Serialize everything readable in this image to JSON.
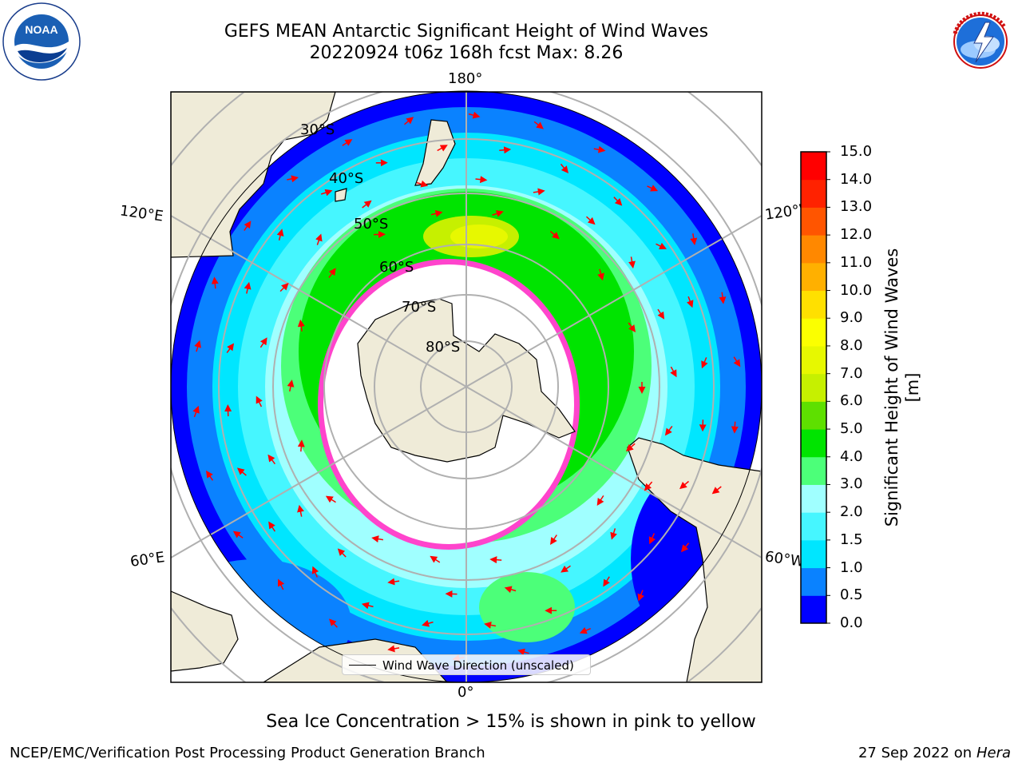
{
  "header": {
    "title_line1": "GEFS MEAN Antarctic Significant Height of Wind Waves",
    "title_line2": "20220924 t06z 168h fcst   Max: 8.26"
  },
  "logos": {
    "noaa": {
      "icon": "noaa-logo-icon",
      "text": "NOAA",
      "ring_text": "NATIONAL OCEANIC AND ATMOSPHERIC ADMINISTRATION · U.S. DEPARTMENT OF COMMERCE"
    },
    "nws": {
      "icon": "nws-logo-icon",
      "ring_text": "NATIONAL WEATHER SERVICE"
    }
  },
  "map": {
    "projection": "south-polar-stereographic",
    "longitude_labels": {
      "top": "180°",
      "bottom": "0°",
      "upper_left": "120°E",
      "lower_left": "60°E",
      "upper_right": "120°W",
      "lower_right": "60°W"
    },
    "latitude_labels": [
      "30°S",
      "40°S",
      "50°S",
      "60°S",
      "70°S",
      "80°S"
    ],
    "max_value": 8.26,
    "legend_label": "Wind Wave Direction (unscaled)",
    "colors": {
      "land": "#efebd8",
      "ocean_low": "#0000ff",
      "arrow": "#ff0000",
      "ice": "#ff44cc",
      "grid": "#b0b0b0"
    }
  },
  "colorbar": {
    "label": "Significant Height of Wind Waves [m]",
    "ticks": [
      "0.0",
      "0.5",
      "1.0",
      "1.5",
      "2.0",
      "3.0",
      "4.0",
      "5.0",
      "6.0",
      "7.0",
      "8.0",
      "9.0",
      "10.0",
      "11.0",
      "12.0",
      "13.0",
      "14.0",
      "15.0"
    ],
    "colors": [
      "#0000ff",
      "#0a82ff",
      "#00e6ff",
      "#46f6ff",
      "#a0ffff",
      "#4cff79",
      "#00e400",
      "#5ee000",
      "#c6f000",
      "#e7f800",
      "#fbff00",
      "#ffe000",
      "#ffb000",
      "#ff8800",
      "#ff5500",
      "#ff2200",
      "#ff0000"
    ]
  },
  "footer": {
    "subtitle": "Sea Ice Concentration > 15% is shown in pink to yellow",
    "left": "NCEP/EMC/Verification Post Processing Product Generation Branch",
    "right_date": "27 Sep 2022 on",
    "right_host": "Hera"
  }
}
